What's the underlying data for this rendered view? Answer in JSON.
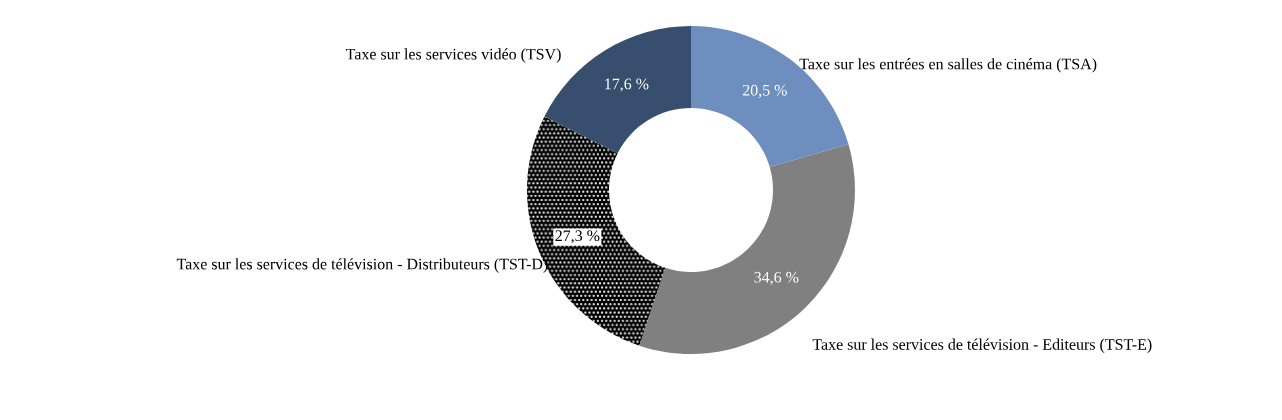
{
  "chart_data": {
    "type": "donut",
    "categories": [
      "Taxe sur les entrées en salles de cinéma (TSA)",
      "Taxe sur les services de télévision - Editeurs (TST-E)",
      "Taxe sur les services de télévision - Distributeurs (TST-D)",
      "Taxe sur les services vidéo (TSV)"
    ],
    "values": [
      20.5,
      34.6,
      27.3,
      17.6
    ],
    "colors": [
      "#6d8ebf",
      "#808080",
      "#000000",
      "#384e6e"
    ],
    "value_labels": [
      "20,5 %",
      "34,6 %",
      "27,3 %",
      "17,6 %"
    ],
    "legend": false
  }
}
